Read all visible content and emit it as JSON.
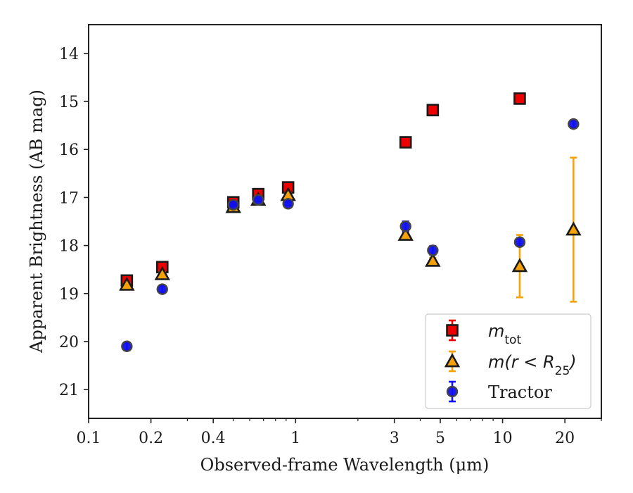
{
  "chart_data": {
    "type": "scatter",
    "xlabel": "Observed-frame Wavelength (μm)",
    "ylabel": "Apparent Brightness (AB mag)",
    "x_scale": "log",
    "xlim": [
      0.1,
      30
    ],
    "ylim": [
      21.6,
      13.4
    ],
    "y_inverted": true,
    "x_ticks": [
      {
        "value": 0.1,
        "label": "0.1"
      },
      {
        "value": 0.2,
        "label": "0.2"
      },
      {
        "value": 0.4,
        "label": "0.4"
      },
      {
        "value": 1,
        "label": "1"
      },
      {
        "value": 3,
        "label": "3"
      },
      {
        "value": 5,
        "label": "5"
      },
      {
        "value": 10,
        "label": "10"
      },
      {
        "value": 20,
        "label": "20"
      }
    ],
    "x_minor_ticks": [
      0.3,
      0.5,
      0.6,
      0.7,
      0.8,
      0.9,
      2,
      4,
      6,
      7,
      8,
      9,
      30
    ],
    "y_ticks": [
      14,
      15,
      16,
      17,
      18,
      19,
      20,
      21
    ],
    "legend_position": "lower-right",
    "series": [
      {
        "name": "m_tot",
        "legend": {
          "base": "m",
          "sub": "tot",
          "suffix": ""
        },
        "marker": "square",
        "color": "#ee0000",
        "edge": "#1a1a1a",
        "error_color": "#ee0000",
        "points": [
          {
            "x": 0.153,
            "y": 18.73,
            "err": 0.06
          },
          {
            "x": 0.227,
            "y": 18.45,
            "err": 0.05
          },
          {
            "x": 0.5,
            "y": 17.1,
            "err": 0.04
          },
          {
            "x": 0.66,
            "y": 16.93,
            "err": 0.04
          },
          {
            "x": 0.92,
            "y": 16.79,
            "err": 0.04
          },
          {
            "x": 3.4,
            "y": 15.85,
            "err": 0.03
          },
          {
            "x": 4.6,
            "y": 15.18,
            "err": 0.03
          },
          {
            "x": 12.1,
            "y": 14.94,
            "err": 0.03
          }
        ]
      },
      {
        "name": "m(r<R25)",
        "legend": {
          "base": "m(r < R",
          "sub": "25",
          "suffix": ")"
        },
        "marker": "triangle",
        "color": "#f5a20a",
        "edge": "#1a1a1a",
        "error_color": "#f5a20a",
        "points": [
          {
            "x": 0.153,
            "y": 18.82,
            "err": 0.04
          },
          {
            "x": 0.227,
            "y": 18.6,
            "err": 0.04
          },
          {
            "x": 0.5,
            "y": 17.2,
            "err": 0.03
          },
          {
            "x": 0.66,
            "y": 17.05,
            "err": 0.03
          },
          {
            "x": 0.92,
            "y": 16.95,
            "err": 0.03
          },
          {
            "x": 3.4,
            "y": 17.78,
            "err": 0.05
          },
          {
            "x": 4.6,
            "y": 18.32,
            "err": 0.06
          },
          {
            "x": 12.1,
            "y": 18.43,
            "err": 0.65
          },
          {
            "x": 22.0,
            "y": 17.67,
            "err": 1.5
          }
        ]
      },
      {
        "name": "Tractor",
        "legend": {
          "base": "Tractor",
          "sub": "",
          "suffix": ""
        },
        "marker": "circle",
        "color": "#1010ee",
        "edge": "#444444",
        "error_color": "#1010ee",
        "points": [
          {
            "x": 0.153,
            "y": 20.1,
            "err": 0.08
          },
          {
            "x": 0.227,
            "y": 18.91,
            "err": 0.06
          },
          {
            "x": 0.5,
            "y": 17.15,
            "err": 0.03
          },
          {
            "x": 0.66,
            "y": 17.05,
            "err": 0.03
          },
          {
            "x": 0.92,
            "y": 17.13,
            "err": 0.03
          },
          {
            "x": 3.4,
            "y": 17.6,
            "err": 0.1
          },
          {
            "x": 4.6,
            "y": 18.1,
            "err": 0.09
          },
          {
            "x": 12.1,
            "y": 17.93,
            "err": 0.08
          },
          {
            "x": 22.0,
            "y": 15.47,
            "err": 0.08
          }
        ]
      }
    ]
  }
}
